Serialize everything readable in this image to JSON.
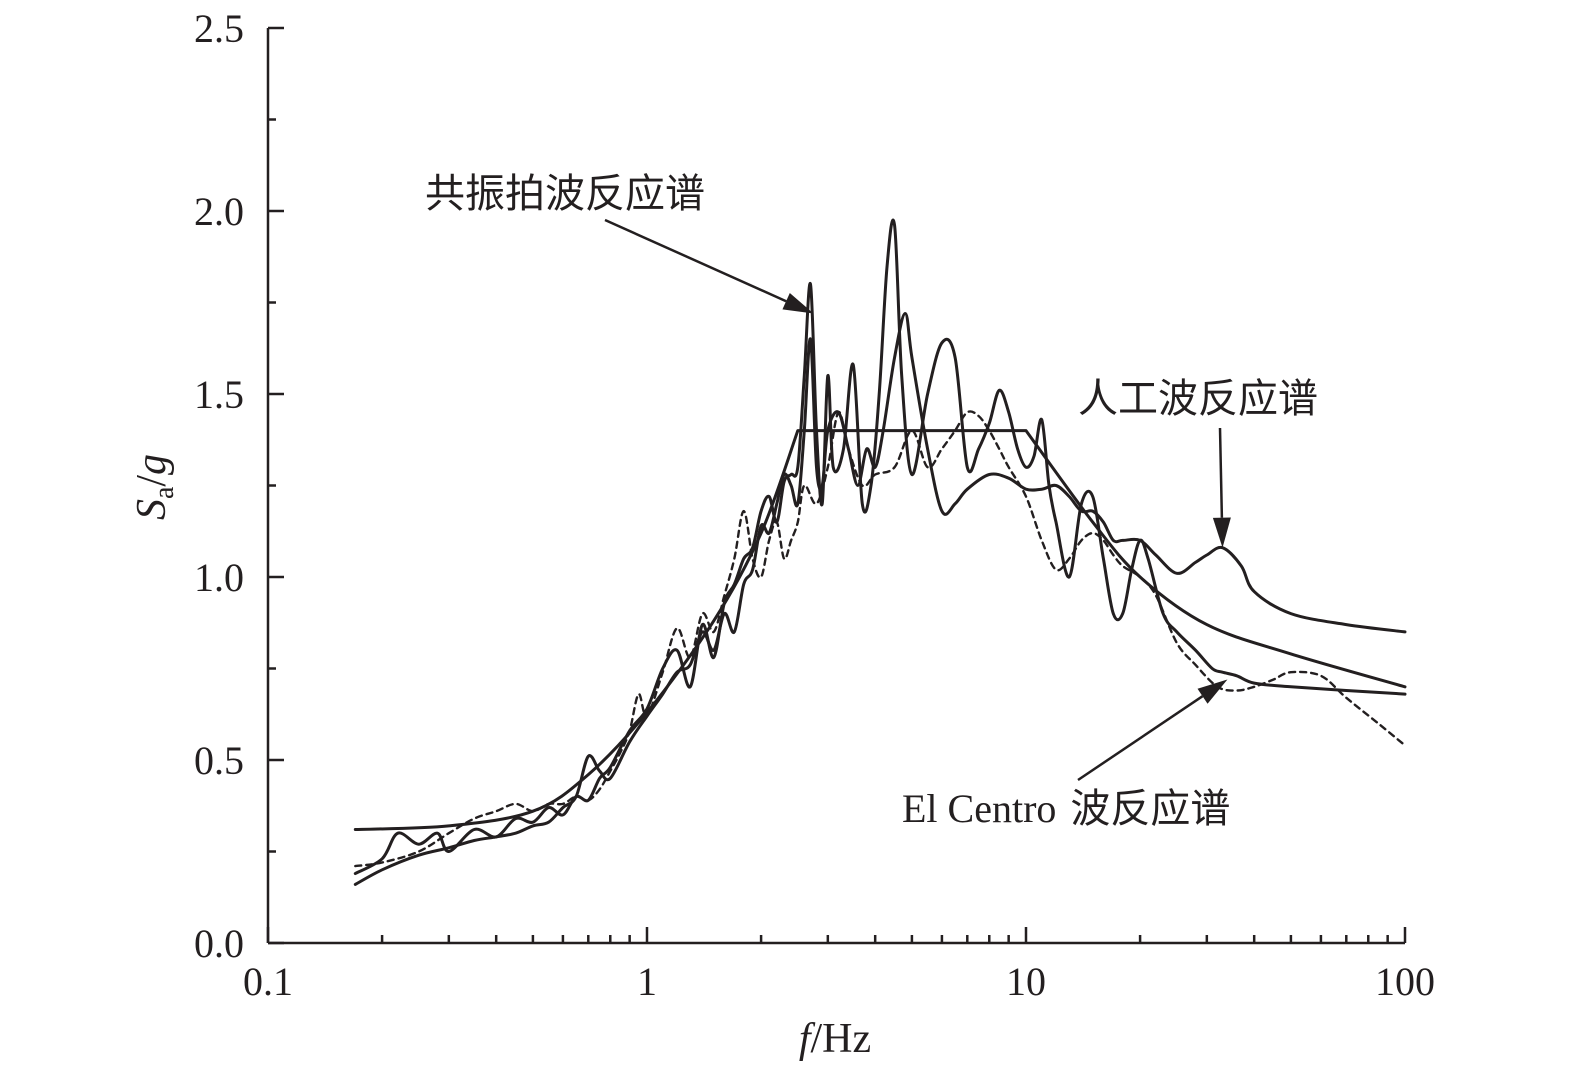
{
  "chart_data": {
    "type": "line",
    "x_scale": "log",
    "xlim": [
      0.1,
      100
    ],
    "ylim": [
      0,
      2.5
    ],
    "xlabel": "f/Hz",
    "ylabel": "Sa/g",
    "ylabel_main": "S",
    "ylabel_sub": "a",
    "ylabel_tail": "/g",
    "xlabel_italic": "f",
    "xlabel_tail": "/Hz",
    "x_ticks": [
      0.1,
      1,
      10,
      100
    ],
    "x_tick_labels": [
      "0.1",
      "1",
      "10",
      "100"
    ],
    "y_ticks": [
      0,
      0.5,
      1.0,
      1.5,
      2.0,
      2.5
    ],
    "y_tick_labels": [
      "0.0",
      "0.5",
      "1.0",
      "1.5",
      "2.0",
      "2.5"
    ],
    "grid": false,
    "annotations": [
      {
        "text": "共振拍波反应谱",
        "points_to": [
          2.75,
          1.72
        ]
      },
      {
        "text": "人工波反应谱",
        "points_to": [
          33,
          1.08
        ]
      },
      {
        "text_latin": "El Centro",
        "text_cjk": "波反应谱",
        "points_to": [
          34,
          0.72
        ]
      }
    ],
    "series": [
      {
        "style": "solid",
        "x": [
          0.17,
          0.3,
          0.5,
          0.7,
          1.0,
          1.5,
          2.0,
          2.5,
          10.0,
          15,
          20,
          30,
          50,
          100
        ],
        "y": [
          0.31,
          0.32,
          0.36,
          0.46,
          0.63,
          0.88,
          1.12,
          1.4,
          1.4,
          1.15,
          1.0,
          0.87,
          0.79,
          0.7
        ]
      },
      {
        "style": "solid",
        "x": [
          0.17,
          0.2,
          0.22,
          0.25,
          0.28,
          0.3,
          0.35,
          0.4,
          0.45,
          0.5,
          0.55,
          0.6,
          0.65,
          0.7,
          0.75,
          0.8,
          0.9,
          1.0,
          1.1,
          1.2,
          1.3,
          1.4,
          1.5,
          1.6,
          1.7,
          1.8,
          1.9,
          2.0,
          2.1,
          2.2,
          2.3,
          2.4,
          2.5,
          2.6,
          2.7,
          2.8,
          2.9,
          3.0,
          3.1,
          3.3,
          3.5,
          3.7,
          3.9,
          4.1,
          4.3,
          4.5,
          4.7,
          5.0,
          5.5,
          6.0,
          6.5,
          7.0,
          7.5,
          8.0,
          8.5,
          9.0,
          9.5,
          10.0,
          10.5,
          11.0,
          11.5,
          12.0,
          13.0,
          14.0,
          15.0,
          16.0,
          17.0,
          18.0,
          19.0,
          20.0,
          21.0,
          23.0,
          25.0,
          28.0,
          31.0,
          33.0,
          36.0,
          40.0,
          50.0,
          70.0,
          100.0
        ],
        "y": [
          0.19,
          0.23,
          0.3,
          0.27,
          0.3,
          0.25,
          0.31,
          0.29,
          0.34,
          0.33,
          0.37,
          0.35,
          0.4,
          0.39,
          0.45,
          0.48,
          0.58,
          0.64,
          0.75,
          0.8,
          0.7,
          0.87,
          0.78,
          0.93,
          0.98,
          1.05,
          1.08,
          1.18,
          1.22,
          1.15,
          1.26,
          1.28,
          1.3,
          1.55,
          1.8,
          1.4,
          1.2,
          1.55,
          1.3,
          1.35,
          1.58,
          1.2,
          1.25,
          1.5,
          1.85,
          1.96,
          1.55,
          1.28,
          1.5,
          1.64,
          1.6,
          1.3,
          1.35,
          1.42,
          1.51,
          1.45,
          1.35,
          1.3,
          1.33,
          1.43,
          1.25,
          1.15,
          1.0,
          1.2,
          1.22,
          1.05,
          0.9,
          0.9,
          1.02,
          1.1,
          1.05,
          0.9,
          0.85,
          0.8,
          0.75,
          0.74,
          0.73,
          0.71,
          0.7,
          0.69,
          0.68
        ]
      },
      {
        "style": "solid",
        "x": [
          0.17,
          0.2,
          0.25,
          0.3,
          0.35,
          0.4,
          0.45,
          0.5,
          0.55,
          0.6,
          0.65,
          0.7,
          0.75,
          0.8,
          0.9,
          1.0,
          1.1,
          1.2,
          1.3,
          1.4,
          1.5,
          1.6,
          1.7,
          1.8,
          1.9,
          2.0,
          2.1,
          2.2,
          2.3,
          2.4,
          2.5,
          2.6,
          2.7,
          2.8,
          2.9,
          3.0,
          3.2,
          3.4,
          3.6,
          3.8,
          4.0,
          4.2,
          4.5,
          4.8,
          5.0,
          5.5,
          6.0,
          6.5,
          7.0,
          8.0,
          9.0,
          10.0,
          11.0,
          12.0,
          13.0,
          14.0,
          15.0,
          16.0,
          17.0,
          18.0,
          20.0,
          22.0,
          25.0,
          28.0,
          30.0,
          33.0,
          37.0,
          40.0,
          50.0,
          70.0,
          100.0
        ],
        "y": [
          0.16,
          0.2,
          0.24,
          0.26,
          0.28,
          0.29,
          0.3,
          0.32,
          0.33,
          0.37,
          0.4,
          0.51,
          0.47,
          0.45,
          0.55,
          0.62,
          0.68,
          0.74,
          0.76,
          0.85,
          0.8,
          0.9,
          0.85,
          0.98,
          1.02,
          1.14,
          1.12,
          1.2,
          1.28,
          1.25,
          1.2,
          1.4,
          1.65,
          1.3,
          1.25,
          1.4,
          1.45,
          1.35,
          1.25,
          1.35,
          1.3,
          1.4,
          1.6,
          1.72,
          1.6,
          1.35,
          1.18,
          1.2,
          1.24,
          1.28,
          1.27,
          1.24,
          1.24,
          1.25,
          1.22,
          1.18,
          1.18,
          1.15,
          1.1,
          1.1,
          1.1,
          1.06,
          1.01,
          1.04,
          1.06,
          1.08,
          1.03,
          0.96,
          0.9,
          0.87,
          0.85
        ]
      },
      {
        "style": "dashed",
        "x": [
          0.17,
          0.2,
          0.25,
          0.3,
          0.35,
          0.4,
          0.45,
          0.5,
          0.55,
          0.6,
          0.65,
          0.7,
          0.75,
          0.8,
          0.85,
          0.9,
          0.95,
          1.0,
          1.1,
          1.2,
          1.3,
          1.4,
          1.5,
          1.6,
          1.7,
          1.8,
          1.9,
          2.0,
          2.1,
          2.2,
          2.3,
          2.4,
          2.5,
          2.6,
          2.8,
          3.0,
          3.2,
          3.4,
          3.7,
          4.0,
          4.5,
          5.0,
          5.5,
          6.0,
          6.5,
          7.0,
          7.5,
          8.0,
          8.5,
          9.0,
          10.0,
          11.0,
          12.0,
          13.0,
          14.0,
          15.0,
          16.0,
          17.0,
          18.0,
          20.0,
          22.0,
          25.0,
          28.0,
          32.0,
          36.0,
          40.0,
          45.0,
          50.0,
          60.0,
          70.0,
          85.0,
          100.0
        ],
        "y": [
          0.21,
          0.22,
          0.25,
          0.3,
          0.34,
          0.36,
          0.38,
          0.36,
          0.38,
          0.38,
          0.4,
          0.39,
          0.42,
          0.47,
          0.52,
          0.58,
          0.68,
          0.62,
          0.74,
          0.86,
          0.78,
          0.9,
          0.85,
          0.95,
          1.05,
          1.18,
          1.05,
          1.0,
          1.1,
          1.15,
          1.05,
          1.1,
          1.15,
          1.25,
          1.2,
          1.3,
          1.45,
          1.35,
          1.25,
          1.28,
          1.3,
          1.4,
          1.3,
          1.35,
          1.4,
          1.45,
          1.44,
          1.4,
          1.35,
          1.3,
          1.22,
          1.1,
          1.02,
          1.05,
          1.1,
          1.12,
          1.1,
          1.06,
          1.03,
          1.0,
          0.95,
          0.82,
          0.76,
          0.7,
          0.69,
          0.7,
          0.72,
          0.74,
          0.73,
          0.67,
          0.6,
          0.54
        ]
      }
    ]
  }
}
